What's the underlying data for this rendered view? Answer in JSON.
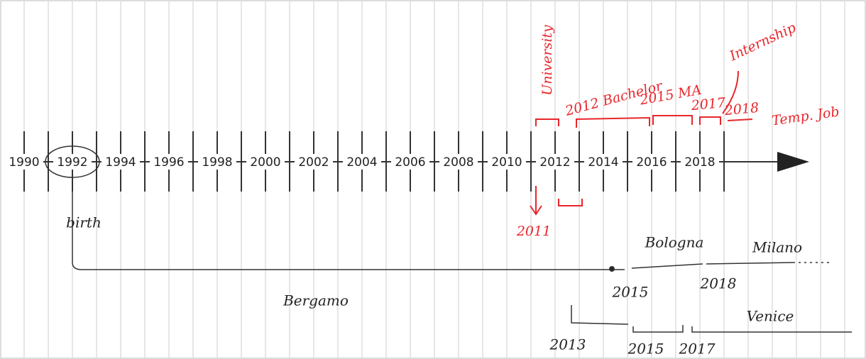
{
  "timeline": {
    "years": [
      "1990",
      "1992",
      "1994",
      "1996",
      "1998",
      "2000",
      "2002",
      "2004",
      "2006",
      "2008",
      "2010",
      "2012",
      "2014",
      "2016",
      "2018"
    ],
    "red_notes": [
      "University",
      "2011",
      "2012 Bachelor",
      "2015 MA",
      "Internship",
      "2017",
      "2018",
      "Temp. Job"
    ],
    "black_notes": [
      "birth",
      "Bergamo",
      "Bologna",
      "Milano",
      "2015",
      "2018",
      "Venice",
      "2013",
      "2015",
      "2017"
    ]
  }
}
